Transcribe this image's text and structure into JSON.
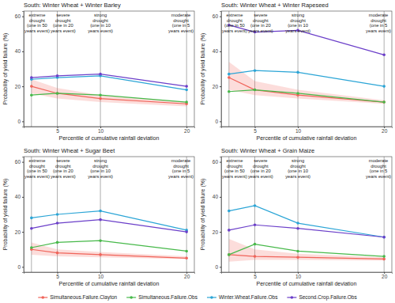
{
  "chart_data": [
    {
      "type": "line",
      "title": "South: Winter Wheat + Winter Barley",
      "xlabel": "Percentile of cumulative rainfall deviation",
      "ylabel": "Probability of yield failure (%)",
      "x": [
        2,
        5,
        10,
        20
      ],
      "xlim": [
        1.1,
        20.9
      ],
      "xticks": [
        5,
        10,
        20
      ],
      "ylim": [
        -3,
        63
      ],
      "yticks": [
        0,
        20,
        40,
        60
      ],
      "legend": "bottom",
      "annotations": [
        {
          "x": 2,
          "lines": [
            "extreme",
            "drought",
            "(one in 50",
            "years event)"
          ]
        },
        {
          "x": 5,
          "lines": [
            "severe",
            "drought",
            "(one in 20",
            "years event)"
          ]
        },
        {
          "x": 10,
          "lines": [
            "strong",
            "drought",
            "(one in 10",
            "years event)"
          ]
        },
        {
          "x": 20,
          "lines": [
            "moderate",
            "drought",
            "(one in 5",
            "years event)"
          ]
        }
      ],
      "series": [
        {
          "name": "Simultaneous.Failure.Clayton",
          "color": "#f0645a",
          "marker": "circle",
          "values": [
            20,
            16,
            13,
            10
          ],
          "lower": [
            16,
            13,
            11,
            8.5
          ],
          "upper": [
            24,
            19,
            15,
            11
          ]
        },
        {
          "name": "Simultaneous.Failure.Obs",
          "color": "#47b94a",
          "marker": "circle",
          "values": [
            15,
            16,
            15,
            11
          ]
        },
        {
          "name": "Winter.Wheat.Failure.Obs",
          "color": "#2ba5d6",
          "marker": "circle",
          "values": [
            24,
            25,
            26,
            18
          ]
        },
        {
          "name": "Second.Crop.Failure.Obs",
          "color": "#6b3fc9",
          "marker": "circle",
          "values": [
            25,
            26,
            27,
            20
          ]
        }
      ]
    },
    {
      "type": "line",
      "title": "South: Winter Wheat + Winter Rapeseed",
      "xlabel": "Percentile of cumulative rainfall deviation",
      "ylabel": "Probability of yield failure (%)",
      "x": [
        2,
        5,
        10,
        20
      ],
      "xlim": [
        1.1,
        20.9
      ],
      "xticks": [
        5,
        10,
        20
      ],
      "ylim": [
        -3,
        63
      ],
      "yticks": [
        0,
        20,
        40,
        60
      ],
      "annotations": [
        {
          "x": 2,
          "lines": [
            "extreme",
            "drought",
            "(one in 50",
            "years event)"
          ]
        },
        {
          "x": 5,
          "lines": [
            "severe",
            "drought",
            "(one in 20",
            "years event)"
          ]
        },
        {
          "x": 10,
          "lines": [
            "strong",
            "drought",
            "(one in 10",
            "years event)"
          ]
        },
        {
          "x": 20,
          "lines": [
            "moderate",
            "drought",
            "(one in 5",
            "years event)"
          ]
        }
      ],
      "series": [
        {
          "name": "Simultaneous.Failure.Clayton",
          "color": "#f0645a",
          "marker": "circle",
          "values": [
            25,
            18,
            15,
            11
          ],
          "lower": [
            18,
            15,
            13,
            10
          ],
          "upper": [
            34,
            23,
            18,
            12
          ]
        },
        {
          "name": "Simultaneous.Failure.Obs",
          "color": "#47b94a",
          "marker": "circle",
          "values": [
            17,
            18,
            16,
            11
          ]
        },
        {
          "name": "Winter.Wheat.Failure.Obs",
          "color": "#2ba5d6",
          "marker": "circle",
          "values": [
            27,
            29,
            28,
            20
          ]
        },
        {
          "name": "Second.Crop.Failure.Obs",
          "color": "#6b3fc9",
          "marker": "circle",
          "values": [
            55,
            51,
            52,
            38
          ]
        }
      ]
    },
    {
      "type": "line",
      "title": "South: Winter Wheat + Sugar Beet",
      "xlabel": "Percentile of cumulative rainfall deviation",
      "ylabel": "Probability of yield failure (%)",
      "x": [
        2,
        5,
        10,
        20
      ],
      "xlim": [
        1.1,
        20.9
      ],
      "xticks": [
        5,
        10,
        20
      ],
      "ylim": [
        -3,
        63
      ],
      "yticks": [
        0,
        20,
        40,
        60
      ],
      "annotations": [
        {
          "x": 2,
          "lines": [
            "extreme",
            "drought",
            "(one in 50",
            "years event)"
          ]
        },
        {
          "x": 5,
          "lines": [
            "severe",
            "drought",
            "(one in 20",
            "years event)"
          ]
        },
        {
          "x": 10,
          "lines": [
            "strong",
            "drought",
            "(one in 10",
            "years event)"
          ]
        },
        {
          "x": 20,
          "lines": [
            "moderate",
            "drought",
            "(one in 5",
            "years event)"
          ]
        }
      ],
      "series": [
        {
          "name": "Simultaneous.Failure.Clayton",
          "color": "#f0645a",
          "marker": "circle",
          "values": [
            10,
            8,
            7,
            5
          ],
          "lower": [
            7,
            6,
            5.5,
            4.5
          ],
          "upper": [
            14,
            10,
            8.5,
            6
          ]
        },
        {
          "name": "Simultaneous.Failure.Obs",
          "color": "#47b94a",
          "marker": "circle",
          "values": [
            11,
            14,
            15,
            9
          ]
        },
        {
          "name": "Winter.Wheat.Failure.Obs",
          "color": "#2ba5d6",
          "marker": "circle",
          "values": [
            28,
            30,
            32,
            21
          ]
        },
        {
          "name": "Second.Crop.Failure.Obs",
          "color": "#6b3fc9",
          "marker": "circle",
          "values": [
            22,
            25,
            27,
            20
          ]
        }
      ]
    },
    {
      "type": "line",
      "title": "South: Winter Wheat + Grain Maize",
      "xlabel": "Percentile of cumulative rainfall deviation",
      "ylabel": "Probability of yield failure (%)",
      "x": [
        2,
        5,
        10,
        20
      ],
      "xlim": [
        1.1,
        20.9
      ],
      "xticks": [
        5,
        10,
        20
      ],
      "ylim": [
        -3,
        63
      ],
      "yticks": [
        0,
        20,
        40,
        60
      ],
      "annotations": [
        {
          "x": 2,
          "lines": [
            "extreme",
            "drought",
            "(one in 50",
            "years event)"
          ]
        },
        {
          "x": 5,
          "lines": [
            "severe",
            "drought",
            "(one in 20",
            "years event)"
          ]
        },
        {
          "x": 10,
          "lines": [
            "strong",
            "drought",
            "(one in 10",
            "years event)"
          ]
        },
        {
          "x": 20,
          "lines": [
            "moderate",
            "drought",
            "(one in 5",
            "years event)"
          ]
        }
      ],
      "series": [
        {
          "name": "Simultaneous.Failure.Clayton",
          "color": "#f0645a",
          "marker": "circle",
          "values": [
            7,
            6,
            5.5,
            4.5
          ],
          "lower": [
            3,
            4,
            4,
            3.5
          ],
          "upper": [
            16,
            10,
            7.5,
            5.5
          ]
        },
        {
          "name": "Simultaneous.Failure.Obs",
          "color": "#47b94a",
          "marker": "circle",
          "values": [
            7,
            13,
            9,
            6
          ]
        },
        {
          "name": "Winter.Wheat.Failure.Obs",
          "color": "#2ba5d6",
          "marker": "circle",
          "values": [
            32,
            35,
            25,
            17
          ]
        },
        {
          "name": "Second.Crop.Failure.Obs",
          "color": "#6b3fc9",
          "marker": "circle",
          "values": [
            21,
            24,
            22,
            17
          ]
        }
      ]
    }
  ]
}
